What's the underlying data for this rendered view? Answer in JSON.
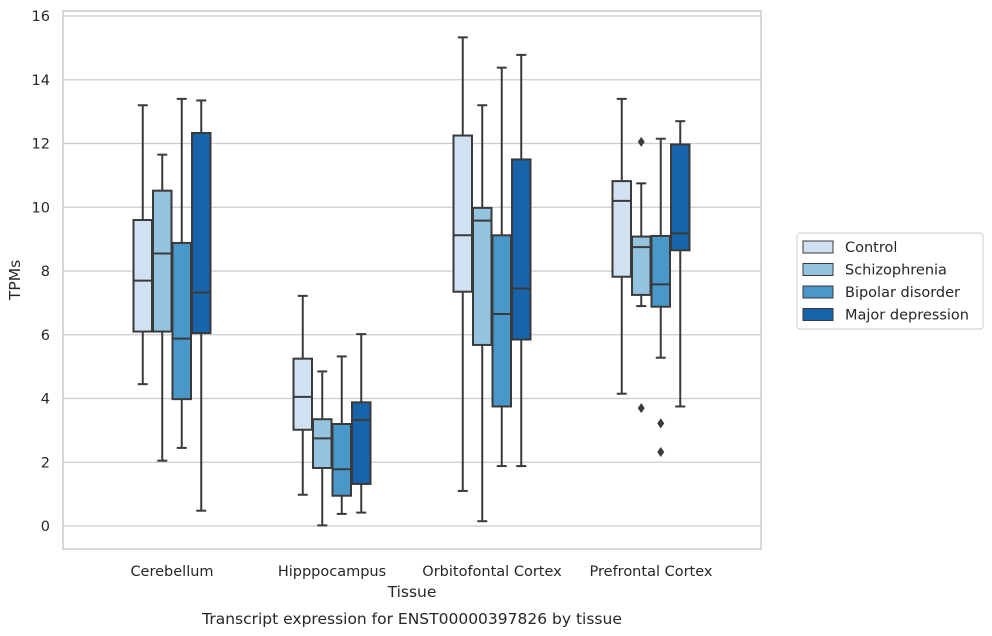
{
  "chart_data": {
    "type": "box",
    "title": "",
    "caption": "Transcript expression for ENST00000397826 by tissue",
    "xlabel": "Tissue",
    "ylabel": "TPMs",
    "ylim": [
      -0.7,
      16.1
    ],
    "yticks": [
      0,
      2,
      4,
      6,
      8,
      10,
      12,
      14,
      16
    ],
    "grid": true,
    "legend_position": "right",
    "categories": [
      "Cerebellum",
      "Hipppocampus",
      "Orbitofontal Cortex",
      "Prefrontal Cortex"
    ],
    "series": [
      {
        "name": "Control",
        "color": "#d0e1f2",
        "boxes": [
          {
            "min": 4.45,
            "q1": 6.1,
            "median": 7.7,
            "q3": 9.6,
            "max": 13.2,
            "outliers": []
          },
          {
            "min": 0.98,
            "q1": 3.02,
            "median": 4.05,
            "q3": 5.25,
            "max": 7.22,
            "outliers": []
          },
          {
            "min": 1.1,
            "q1": 7.35,
            "median": 9.12,
            "q3": 12.25,
            "max": 15.33,
            "outliers": []
          },
          {
            "min": 4.15,
            "q1": 7.82,
            "median": 10.2,
            "q3": 10.82,
            "max": 13.4,
            "outliers": []
          }
        ]
      },
      {
        "name": "Schizophrenia",
        "color": "#94c4df",
        "boxes": [
          {
            "min": 2.05,
            "q1": 6.1,
            "median": 8.55,
            "q3": 10.52,
            "max": 11.65,
            "outliers": []
          },
          {
            "min": 0.02,
            "q1": 1.82,
            "median": 2.75,
            "q3": 3.35,
            "max": 4.85,
            "outliers": []
          },
          {
            "min": 0.15,
            "q1": 5.68,
            "median": 9.58,
            "q3": 9.98,
            "max": 13.2,
            "outliers": []
          },
          {
            "min": 6.9,
            "q1": 7.25,
            "median": 8.75,
            "q3": 9.08,
            "max": 10.75,
            "outliers": [
              12.05,
              3.7
            ]
          }
        ]
      },
      {
        "name": "Bipolar disorder",
        "color": "#4a98c9",
        "boxes": [
          {
            "min": 2.45,
            "q1": 3.98,
            "median": 5.88,
            "q3": 8.88,
            "max": 13.4,
            "outliers": []
          },
          {
            "min": 0.38,
            "q1": 0.95,
            "median": 1.78,
            "q3": 3.2,
            "max": 5.32,
            "outliers": []
          },
          {
            "min": 1.88,
            "q1": 3.75,
            "median": 6.65,
            "q3": 9.12,
            "max": 14.38,
            "outliers": []
          },
          {
            "min": 5.28,
            "q1": 6.88,
            "median": 7.58,
            "q3": 9.1,
            "max": 12.15,
            "outliers": [
              3.22,
              2.32
            ]
          }
        ]
      },
      {
        "name": "Major depression",
        "color": "#1764ab",
        "boxes": [
          {
            "min": 0.48,
            "q1": 6.05,
            "median": 7.32,
            "q3": 12.33,
            "max": 13.35,
            "outliers": []
          },
          {
            "min": 0.42,
            "q1": 1.32,
            "median": 3.32,
            "q3": 3.88,
            "max": 6.02,
            "outliers": []
          },
          {
            "min": 1.88,
            "q1": 5.85,
            "median": 7.45,
            "q3": 11.5,
            "max": 14.78,
            "outliers": []
          },
          {
            "min": 3.75,
            "q1": 8.65,
            "median": 9.18,
            "q3": 11.97,
            "max": 12.7,
            "outliers": []
          }
        ]
      }
    ]
  }
}
